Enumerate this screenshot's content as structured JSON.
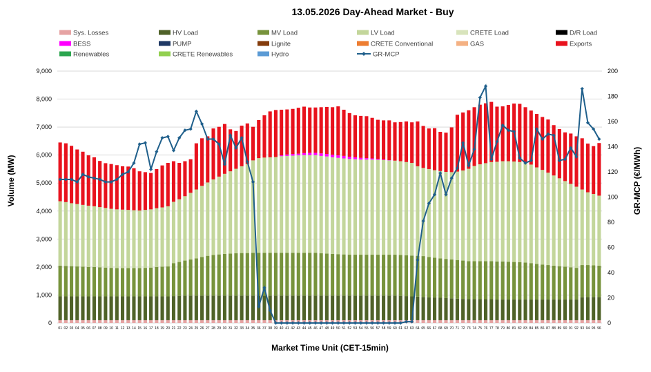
{
  "chart_data": {
    "type": "bar",
    "stacked": true,
    "title": "13.05.2026  Day-Ahead Market - Buy",
    "xlabel": "Market Time Unit (CET-15min)",
    "ylabel": "Volume (MW)",
    "y2label": "GR-MCP (€/MWh)",
    "ylim": [
      0,
      9000
    ],
    "y2lim": [
      0,
      200
    ],
    "yticks": [
      "0",
      "1,000",
      "2,000",
      "3,000",
      "4,000",
      "5,000",
      "6,000",
      "7,000",
      "8,000",
      "9,000"
    ],
    "y2ticks": [
      "0",
      "20",
      "40",
      "60",
      "80",
      "100",
      "120",
      "140",
      "160",
      "180",
      "200"
    ],
    "grid": true,
    "legend_position": "top",
    "categories": [
      "01",
      "02",
      "03",
      "04",
      "05",
      "06",
      "07",
      "08",
      "09",
      "10",
      "11",
      "12",
      "13",
      "14",
      "15",
      "16",
      "17",
      "18",
      "19",
      "20",
      "21",
      "22",
      "23",
      "24",
      "25",
      "26",
      "27",
      "28",
      "29",
      "30",
      "31",
      "32",
      "33",
      "34",
      "35",
      "36",
      "37",
      "38",
      "39",
      "40",
      "41",
      "42",
      "43",
      "44",
      "45",
      "46",
      "47",
      "48",
      "49",
      "50",
      "51",
      "52",
      "53",
      "54",
      "55",
      "56",
      "57",
      "58",
      "59",
      "60",
      "61",
      "62",
      "63",
      "64",
      "65",
      "66",
      "67",
      "68",
      "69",
      "70",
      "71",
      "72",
      "73",
      "74",
      "75",
      "76",
      "77",
      "78",
      "79",
      "80",
      "81",
      "82",
      "83",
      "84",
      "85",
      "86",
      "87",
      "88",
      "89",
      "90",
      "91",
      "92",
      "93",
      "94",
      "95",
      "96"
    ],
    "legend": [
      {
        "name": "Sys. Losses",
        "color": "#e6a3a3",
        "kind": "box"
      },
      {
        "name": "HV Load",
        "color": "#4f6228",
        "kind": "box"
      },
      {
        "name": "MV Load",
        "color": "#77933c",
        "kind": "box"
      },
      {
        "name": "LV Load",
        "color": "#c3d69b",
        "kind": "box"
      },
      {
        "name": "CRETE Load",
        "color": "#d8e4bc",
        "kind": "box"
      },
      {
        "name": "D/R Load",
        "color": "#000000",
        "kind": "box"
      },
      {
        "name": "BESS",
        "color": "#ff00ff",
        "kind": "box"
      },
      {
        "name": "PUMP",
        "color": "#1f3864",
        "kind": "box"
      },
      {
        "name": "Lignite",
        "color": "#843c0c",
        "kind": "box"
      },
      {
        "name": "CRETE Conventional",
        "color": "#ed7d31",
        "kind": "box"
      },
      {
        "name": "GAS",
        "color": "#f4b183",
        "kind": "box"
      },
      {
        "name": "Exports",
        "color": "#e8121d",
        "kind": "box"
      },
      {
        "name": "Renewables",
        "color": "#2ca64f",
        "kind": "box"
      },
      {
        "name": "CRETE Renewables",
        "color": "#92d050",
        "kind": "box"
      },
      {
        "name": "Hydro",
        "color": "#5b9bd5",
        "kind": "box"
      },
      {
        "name": "GR-MCP",
        "color": "#1f5f8b",
        "kind": "line"
      }
    ],
    "series": [
      {
        "name": "Sys. Losses",
        "color": "#e6a3a3",
        "values": [
          100,
          100,
          100,
          100,
          100,
          100,
          100,
          100,
          100,
          100,
          100,
          100,
          100,
          100,
          100,
          100,
          100,
          100,
          100,
          100,
          100,
          100,
          100,
          100,
          100,
          100,
          100,
          100,
          100,
          100,
          100,
          100,
          100,
          100,
          100,
          100,
          100,
          100,
          100,
          100,
          100,
          100,
          100,
          100,
          100,
          100,
          100,
          100,
          100,
          100,
          100,
          100,
          100,
          100,
          100,
          100,
          100,
          100,
          100,
          100,
          100,
          100,
          100,
          100,
          100,
          100,
          100,
          100,
          100,
          100,
          100,
          100,
          100,
          100,
          100,
          100,
          100,
          100,
          100,
          100,
          100,
          100,
          100,
          100,
          100,
          100,
          100,
          100,
          100,
          100,
          100,
          100,
          100,
          100,
          100,
          100
        ]
      },
      {
        "name": "HV Load",
        "color": "#4f6228",
        "values": [
          850,
          850,
          850,
          850,
          850,
          850,
          850,
          850,
          850,
          850,
          850,
          850,
          850,
          850,
          850,
          850,
          850,
          850,
          850,
          850,
          860,
          870,
          880,
          880,
          880,
          880,
          880,
          880,
          880,
          880,
          880,
          880,
          880,
          880,
          880,
          880,
          880,
          880,
          880,
          880,
          880,
          880,
          880,
          880,
          880,
          880,
          880,
          880,
          880,
          880,
          880,
          880,
          880,
          880,
          880,
          880,
          880,
          880,
          880,
          880,
          870,
          860,
          850,
          840,
          830,
          820,
          810,
          800,
          790,
          780,
          770,
          760,
          750,
          750,
          750,
          750,
          750,
          740,
          740,
          740,
          740,
          740,
          740,
          740,
          740,
          740,
          740,
          740,
          740,
          740,
          740,
          740,
          820,
          830,
          830,
          830
        ]
      },
      {
        "name": "MV Load",
        "color": "#77933c",
        "values": [
          1100,
          1090,
          1080,
          1070,
          1060,
          1050,
          1050,
          1040,
          1030,
          1020,
          1010,
          1010,
          1010,
          1010,
          1010,
          1020,
          1030,
          1050,
          1060,
          1070,
          1180,
          1210,
          1250,
          1290,
          1330,
          1380,
          1420,
          1450,
          1470,
          1490,
          1500,
          1510,
          1520,
          1520,
          1530,
          1530,
          1530,
          1530,
          1530,
          1530,
          1530,
          1530,
          1530,
          1530,
          1530,
          1530,
          1510,
          1500,
          1490,
          1480,
          1470,
          1460,
          1460,
          1460,
          1460,
          1460,
          1460,
          1460,
          1460,
          1460,
          1460,
          1460,
          1460,
          1460,
          1460,
          1440,
          1420,
          1410,
          1400,
          1390,
          1380,
          1370,
          1360,
          1360,
          1360,
          1360,
          1360,
          1360,
          1360,
          1350,
          1340,
          1330,
          1320,
          1300,
          1270,
          1250,
          1230,
          1210,
          1190,
          1170,
          1150,
          1130,
          1150,
          1140,
          1130,
          1120
        ]
      },
      {
        "name": "LV Load",
        "color": "#c3d69b",
        "values": [
          2300,
          2280,
          2250,
          2230,
          2210,
          2190,
          2170,
          2150,
          2130,
          2110,
          2100,
          2090,
          2080,
          2070,
          2060,
          2070,
          2080,
          2100,
          2120,
          2150,
          2190,
          2240,
          2300,
          2380,
          2460,
          2540,
          2620,
          2700,
          2780,
          2860,
          2940,
          3020,
          3100,
          3180,
          3300,
          3380,
          3400,
          3410,
          3420,
          3450,
          3460,
          3470,
          3480,
          3490,
          3490,
          3490,
          3480,
          3470,
          3450,
          3440,
          3430,
          3420,
          3410,
          3400,
          3400,
          3400,
          3390,
          3380,
          3370,
          3360,
          3350,
          3330,
          3310,
          3200,
          3150,
          3140,
          3130,
          3120,
          3110,
          3120,
          3160,
          3220,
          3300,
          3400,
          3460,
          3500,
          3540,
          3560,
          3580,
          3590,
          3590,
          3580,
          3570,
          3520,
          3450,
          3380,
          3300,
          3220,
          3140,
          3060,
          2980,
          2900,
          2700,
          2600,
          2550,
          2500
        ]
      },
      {
        "name": "BESS",
        "color": "#ff00ff",
        "values": [
          0,
          0,
          0,
          0,
          0,
          0,
          0,
          0,
          0,
          0,
          0,
          0,
          0,
          0,
          0,
          0,
          0,
          0,
          0,
          0,
          0,
          0,
          0,
          0,
          0,
          0,
          0,
          0,
          0,
          0,
          0,
          0,
          0,
          0,
          0,
          0,
          0,
          0,
          0,
          30,
          50,
          60,
          60,
          70,
          80,
          80,
          90,
          90,
          90,
          90,
          90,
          80,
          70,
          60,
          50,
          40,
          30,
          20,
          10,
          0,
          0,
          0,
          0,
          0,
          0,
          0,
          0,
          0,
          0,
          0,
          0,
          0,
          0,
          0,
          0,
          0,
          0,
          0,
          0,
          0,
          0,
          0,
          0,
          0,
          0,
          0,
          0,
          0,
          0,
          0,
          0,
          0,
          0,
          0,
          0,
          0
        ]
      },
      {
        "name": "Exports",
        "color": "#e8121d",
        "values": [
          2100,
          2100,
          2050,
          1950,
          1900,
          1800,
          1750,
          1650,
          1600,
          1600,
          1580,
          1550,
          1550,
          1500,
          1400,
          1350,
          1300,
          1400,
          1500,
          1550,
          1450,
          1300,
          1250,
          1200,
          1650,
          1700,
          1650,
          1820,
          1780,
          1780,
          1500,
          1350,
          1450,
          1450,
          1200,
          1360,
          1510,
          1640,
          1680,
          1630,
          1610,
          1610,
          1640,
          1660,
          1620,
          1620,
          1650,
          1680,
          1700,
          1750,
          1650,
          1560,
          1500,
          1500,
          1500,
          1450,
          1400,
          1400,
          1420,
          1370,
          1400,
          1450,
          1450,
          1600,
          1500,
          1450,
          1500,
          1400,
          1400,
          1600,
          2030,
          2070,
          2090,
          2100,
          2130,
          2140,
          2150,
          1970,
          1960,
          2010,
          2070,
          2080,
          1980,
          1930,
          1910,
          1890,
          1900,
          1800,
          1760,
          1740,
          1800,
          1800,
          1830,
          1740,
          1710,
          1880
        ]
      }
    ],
    "line": {
      "name": "GR-MCP",
      "color": "#1f5f8b",
      "axis": "right",
      "values": [
        114,
        114,
        114,
        112,
        118,
        116,
        115,
        114,
        112,
        112,
        114,
        118,
        120,
        127,
        142,
        143,
        122,
        136,
        147,
        148,
        137,
        147,
        153,
        154,
        168,
        158,
        146,
        146,
        142,
        126,
        149,
        139,
        147,
        128,
        112,
        13,
        28,
        10,
        0,
        0,
        0,
        0,
        0,
        0,
        0,
        0,
        0,
        0,
        0,
        0,
        0,
        0,
        0,
        0,
        0,
        0,
        0,
        0,
        0,
        0,
        0,
        1,
        1,
        50,
        81,
        95,
        102,
        119,
        102,
        115,
        123,
        143,
        125,
        138,
        179,
        188,
        130,
        144,
        157,
        153,
        152,
        131,
        127,
        129,
        154,
        146,
        150,
        149,
        129,
        130,
        139,
        132,
        186,
        159,
        154,
        146
      ]
    }
  }
}
